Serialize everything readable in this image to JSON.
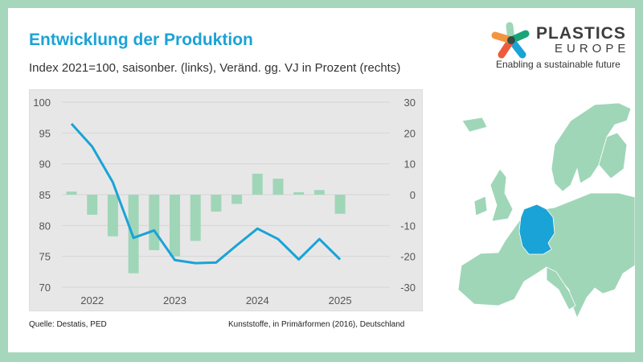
{
  "header": {
    "title": "Entwicklung der Produktion",
    "subtitle": "Index 2021=100, saisonber. (links), Veränd. gg. VJ in Prozent (rechts)"
  },
  "logo": {
    "name_line1": "PLASTICS",
    "name_line2": "EUROPE",
    "tagline": "Enabling a sustainable future"
  },
  "footer": {
    "source": "Quelle: Destatis, PED",
    "note": "Kunststoffe, in Primärformen (2016), Deutschland"
  },
  "colors": {
    "line": "#1aa3d6",
    "bars": "#9fd6b8",
    "map": "#9fd6b8",
    "germany": "#1aa3d6",
    "frame": "#a6d7bd"
  },
  "chart_data": {
    "type": "bar+line",
    "x_tick_labels": [
      "2022",
      "2023",
      "2024",
      "2025"
    ],
    "left_axis": {
      "ylim": [
        70,
        100
      ],
      "ticks": [
        "100",
        "95",
        "90",
        "85",
        "80",
        "75",
        "70"
      ]
    },
    "right_axis": {
      "ylim": [
        -30,
        30
      ],
      "ticks": [
        "30",
        "20",
        "10",
        "0",
        "-10",
        "-20",
        "-30"
      ]
    },
    "grid": true,
    "series": [
      {
        "name": "Index 2021=100, saisonber.",
        "type": "line",
        "axis": "left",
        "values": [
          96.5,
          92.8,
          87,
          78,
          79.2,
          74.4,
          73.9,
          74,
          76.8,
          79.5,
          77.8,
          74.5,
          77.8,
          74.5
        ]
      },
      {
        "name": "Veränd. gg. VJ in Prozent",
        "type": "bar",
        "axis": "right",
        "values": [
          1,
          -6.5,
          -13.5,
          -25.5,
          -18,
          -20,
          -15,
          -5.5,
          -3,
          6.8,
          5.2,
          0.8,
          1.5,
          -6.2
        ]
      }
    ]
  }
}
